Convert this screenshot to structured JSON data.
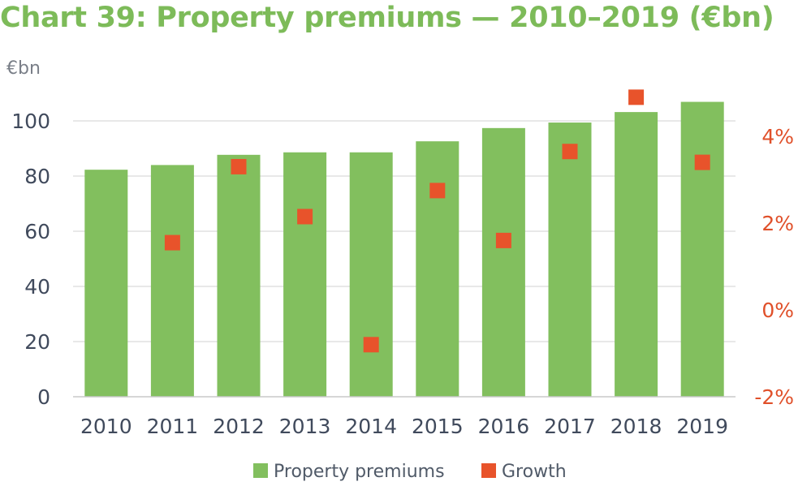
{
  "title": "Chart 39: Property premiums — 2010–2019 (€bn)",
  "chart_data": {
    "type": "bar",
    "title": "Chart 39: Property premiums — 2010–2019 (€bn)",
    "y_unit_label": "€bn",
    "categories": [
      "2010",
      "2011",
      "2012",
      "2013",
      "2014",
      "2015",
      "2016",
      "2017",
      "2018",
      "2019"
    ],
    "series": [
      {
        "name": "Property premiums",
        "type": "bar",
        "axis": "left",
        "color": "#82bf5e",
        "values": [
          82.3,
          84.0,
          87.7,
          88.6,
          88.6,
          92.6,
          97.4,
          99.4,
          103.2,
          106.9
        ]
      },
      {
        "name": "Growth",
        "type": "scatter",
        "axis": "right",
        "unit": "%",
        "color": "#e8532b",
        "values": [
          1.55,
          3.3,
          2.15,
          -0.8,
          2.75,
          1.6,
          3.65,
          4.9,
          3.4
        ]
      }
    ],
    "growth_categories": [
      "2011",
      "2012",
      "2013",
      "2014",
      "2015",
      "2016",
      "2017",
      "2018",
      "2019"
    ],
    "y_left": {
      "min": 0,
      "max": 100,
      "ticks": [
        "0",
        "20",
        "40",
        "60",
        "80",
        "100"
      ],
      "tick_values": [
        0,
        20,
        40,
        60,
        80,
        100
      ]
    },
    "y_right": {
      "min": -2,
      "max": 4,
      "ticks": [
        "-2%",
        "0%",
        "2%",
        "4%"
      ],
      "tick_values": [
        -2,
        0,
        2,
        4
      ]
    },
    "grid": true,
    "legend": {
      "position": "bottom",
      "items": [
        "Property premiums",
        "Growth"
      ]
    }
  }
}
